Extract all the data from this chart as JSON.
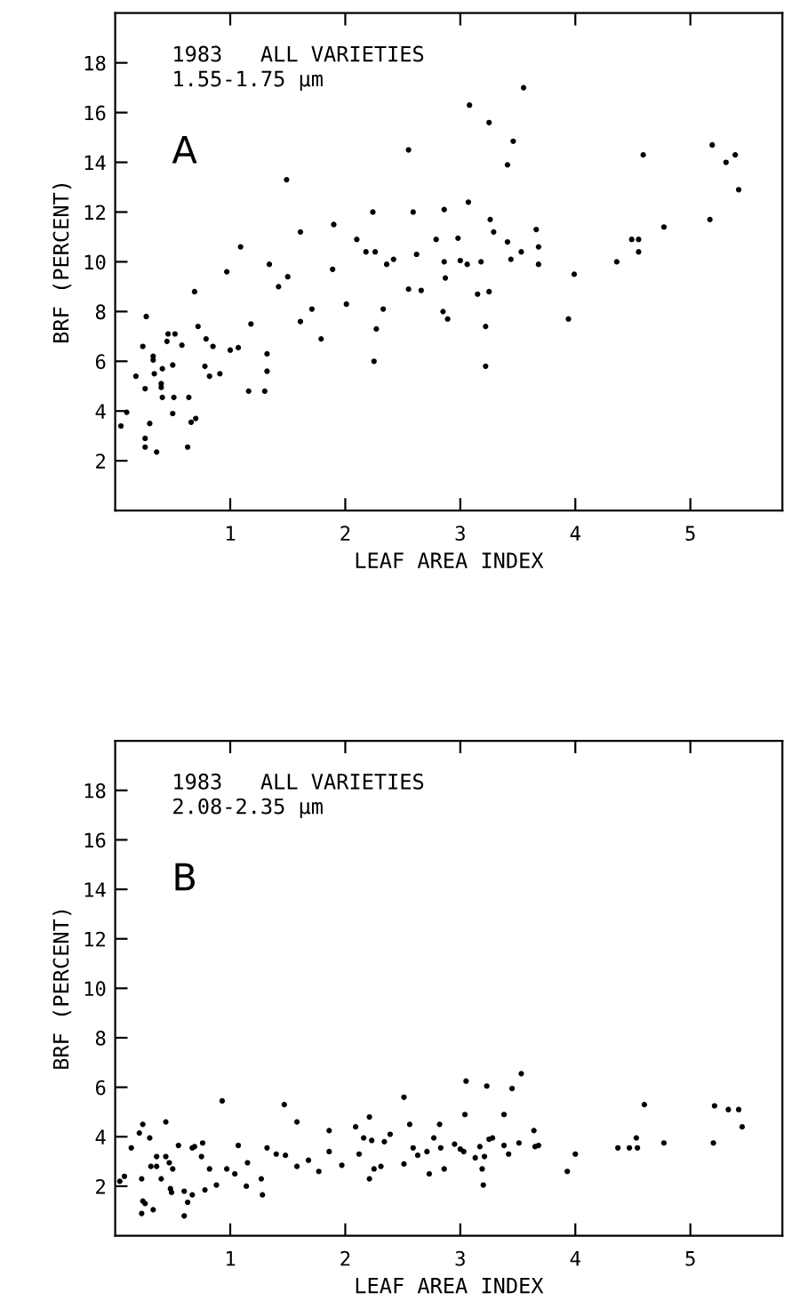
{
  "chart_data": [
    {
      "type": "scatter",
      "xlabel": "LEAF AREA INDEX",
      "ylabel": "BRF (PERCENT)",
      "xlim": [
        0,
        5.8
      ],
      "ylim": [
        0,
        20
      ],
      "xticks": [
        1,
        2,
        3,
        4,
        5
      ],
      "yticks": [
        2,
        4,
        6,
        8,
        10,
        12,
        14,
        16,
        18
      ],
      "marker": "circle",
      "annotations": [
        "1983   ALL VARIETIES",
        "1.55-1.75 µm",
        "A"
      ],
      "series": [
        {
          "color": "#000000",
          "x": [
            3.55,
            3.08,
            3.25,
            3.46,
            2.55,
            3.41,
            4.59,
            5.19,
            5.31,
            5.39,
            5.42,
            1.49,
            3.07,
            2.86,
            2.59,
            2.24,
            1.9,
            1.61,
            1.09,
            3.26,
            3.29,
            3.66,
            4.77,
            5.17,
            2.1,
            2.18,
            2.26,
            2.42,
            2.62,
            2.79,
            2.98,
            3.41,
            3.53,
            3.68,
            4.49,
            4.55,
            4.55,
            0.97,
            1.34,
            1.42,
            1.5,
            1.89,
            1.61,
            1.71,
            1.79,
            2.01,
            2.36,
            2.55,
            2.66,
            2.87,
            2.85,
            2.89,
            3.0,
            3.06,
            2.86,
            3.18,
            3.44,
            3.68,
            3.15,
            3.25,
            3.22,
            3.22,
            2.27,
            2.33,
            2.25,
            3.94,
            3.99,
            4.36,
            1.18,
            1.16,
            1.3,
            1.32,
            1.32,
            1.0,
            1.07,
            0.69,
            0.72,
            0.79,
            0.85,
            0.78,
            0.82,
            0.91,
            0.46,
            0.52,
            0.58,
            0.45,
            0.27,
            0.24,
            0.33,
            0.33,
            0.18,
            0.26,
            0.34,
            0.41,
            0.4,
            0.4,
            0.5,
            0.41,
            0.51,
            0.64,
            0.5,
            0.66,
            0.7,
            0.3,
            0.05,
            0.1,
            0.26,
            0.26,
            0.36,
            0.63
          ],
          "values": [
            17.0,
            16.3,
            15.6,
            14.85,
            14.5,
            13.9,
            14.3,
            14.7,
            14.0,
            14.3,
            12.9,
            13.3,
            12.4,
            12.1,
            12.0,
            12.0,
            11.5,
            11.2,
            10.6,
            11.7,
            11.2,
            11.3,
            11.4,
            11.7,
            10.9,
            10.4,
            10.4,
            10.1,
            10.3,
            10.9,
            10.95,
            10.8,
            10.4,
            10.6,
            10.9,
            10.9,
            10.4,
            9.6,
            9.9,
            9.0,
            9.4,
            9.7,
            7.6,
            8.1,
            6.9,
            8.3,
            9.9,
            8.9,
            8.85,
            9.35,
            8.0,
            7.7,
            10.05,
            9.9,
            10.0,
            10.0,
            10.1,
            9.9,
            8.7,
            8.8,
            7.4,
            5.8,
            7.3,
            8.1,
            6.0,
            7.7,
            9.5,
            10.0,
            7.5,
            4.8,
            4.8,
            5.6,
            6.3,
            6.45,
            6.55,
            8.8,
            7.4,
            6.9,
            6.6,
            5.8,
            5.4,
            5.5,
            7.1,
            7.1,
            6.65,
            6.8,
            7.8,
            6.6,
            6.2,
            6.05,
            5.4,
            4.9,
            5.5,
            5.7,
            5.1,
            4.95,
            5.85,
            4.55,
            4.55,
            4.55,
            3.9,
            3.55,
            3.7,
            3.5,
            3.4,
            3.95,
            2.9,
            2.55,
            2.35,
            2.55
          ]
        }
      ]
    },
    {
      "type": "scatter",
      "xlabel": "LEAF AREA INDEX",
      "ylabel": "BRF (PERCENT)",
      "xlim": [
        0,
        5.8
      ],
      "ylim": [
        0,
        20
      ],
      "xticks": [
        1,
        2,
        3,
        4,
        5
      ],
      "yticks": [
        2,
        4,
        6,
        8,
        10,
        12,
        14,
        16,
        18
      ],
      "marker": "circle",
      "annotations": [
        "1983   ALL VARIETIES",
        "2.08-2.35 µm",
        "B"
      ],
      "series": [
        {
          "color": "#000000",
          "x": [
            0.08,
            0.04,
            0.14,
            0.21,
            0.24,
            0.3,
            0.23,
            0.24,
            0.26,
            0.23,
            0.33,
            0.31,
            0.36,
            0.36,
            0.4,
            0.44,
            0.44,
            0.47,
            0.5,
            0.48,
            0.49,
            0.55,
            0.6,
            0.6,
            0.63,
            0.67,
            0.67,
            0.69,
            0.76,
            0.75,
            0.82,
            0.78,
            0.88,
            0.93,
            0.97,
            1.04,
            1.07,
            1.15,
            1.14,
            1.27,
            1.28,
            1.32,
            1.4,
            1.47,
            1.48,
            1.58,
            1.58,
            1.68,
            1.77,
            1.86,
            1.86,
            1.97,
            2.09,
            2.12,
            2.16,
            2.21,
            2.23,
            2.21,
            2.25,
            2.31,
            2.34,
            2.39,
            2.51,
            2.56,
            2.51,
            2.59,
            2.63,
            2.71,
            2.73,
            2.77,
            2.82,
            2.83,
            2.86,
            2.95,
            3.0,
            3.03,
            3.05,
            3.04,
            3.17,
            3.13,
            3.21,
            3.19,
            3.2,
            3.23,
            3.25,
            3.28,
            3.38,
            3.38,
            3.42,
            3.45,
            3.51,
            3.53,
            3.64,
            3.65,
            3.68,
            3.93,
            4.0,
            4.37,
            4.47,
            4.54,
            4.53,
            4.6,
            4.77,
            5.2,
            5.21,
            5.33,
            5.42,
            5.45
          ],
          "values": [
            2.4,
            2.2,
            3.55,
            4.15,
            4.5,
            3.95,
            2.3,
            1.4,
            1.3,
            0.9,
            1.05,
            2.8,
            3.2,
            2.8,
            2.3,
            3.2,
            4.6,
            2.95,
            2.7,
            1.9,
            1.75,
            3.65,
            1.8,
            0.8,
            1.35,
            1.65,
            3.55,
            3.6,
            3.75,
            3.2,
            2.7,
            1.85,
            2.05,
            5.45,
            2.7,
            2.5,
            3.65,
            2.95,
            2.0,
            2.3,
            1.65,
            3.55,
            3.3,
            5.3,
            3.25,
            4.6,
            2.8,
            3.05,
            2.6,
            4.25,
            3.4,
            2.85,
            4.4,
            3.3,
            3.95,
            4.8,
            3.85,
            2.3,
            2.7,
            2.8,
            3.8,
            4.1,
            5.6,
            4.5,
            2.9,
            3.55,
            3.25,
            3.4,
            2.5,
            3.95,
            4.5,
            3.55,
            2.7,
            3.7,
            3.5,
            3.4,
            6.25,
            4.9,
            3.6,
            3.15,
            3.2,
            2.7,
            2.05,
            6.05,
            3.9,
            3.95,
            4.9,
            3.65,
            3.3,
            5.95,
            3.75,
            6.55,
            4.25,
            3.6,
            3.65,
            2.6,
            3.3,
            3.55,
            3.55,
            3.55,
            3.95,
            5.3,
            3.75,
            3.75,
            5.25,
            5.1,
            5.1,
            4.4
          ]
        }
      ]
    }
  ]
}
